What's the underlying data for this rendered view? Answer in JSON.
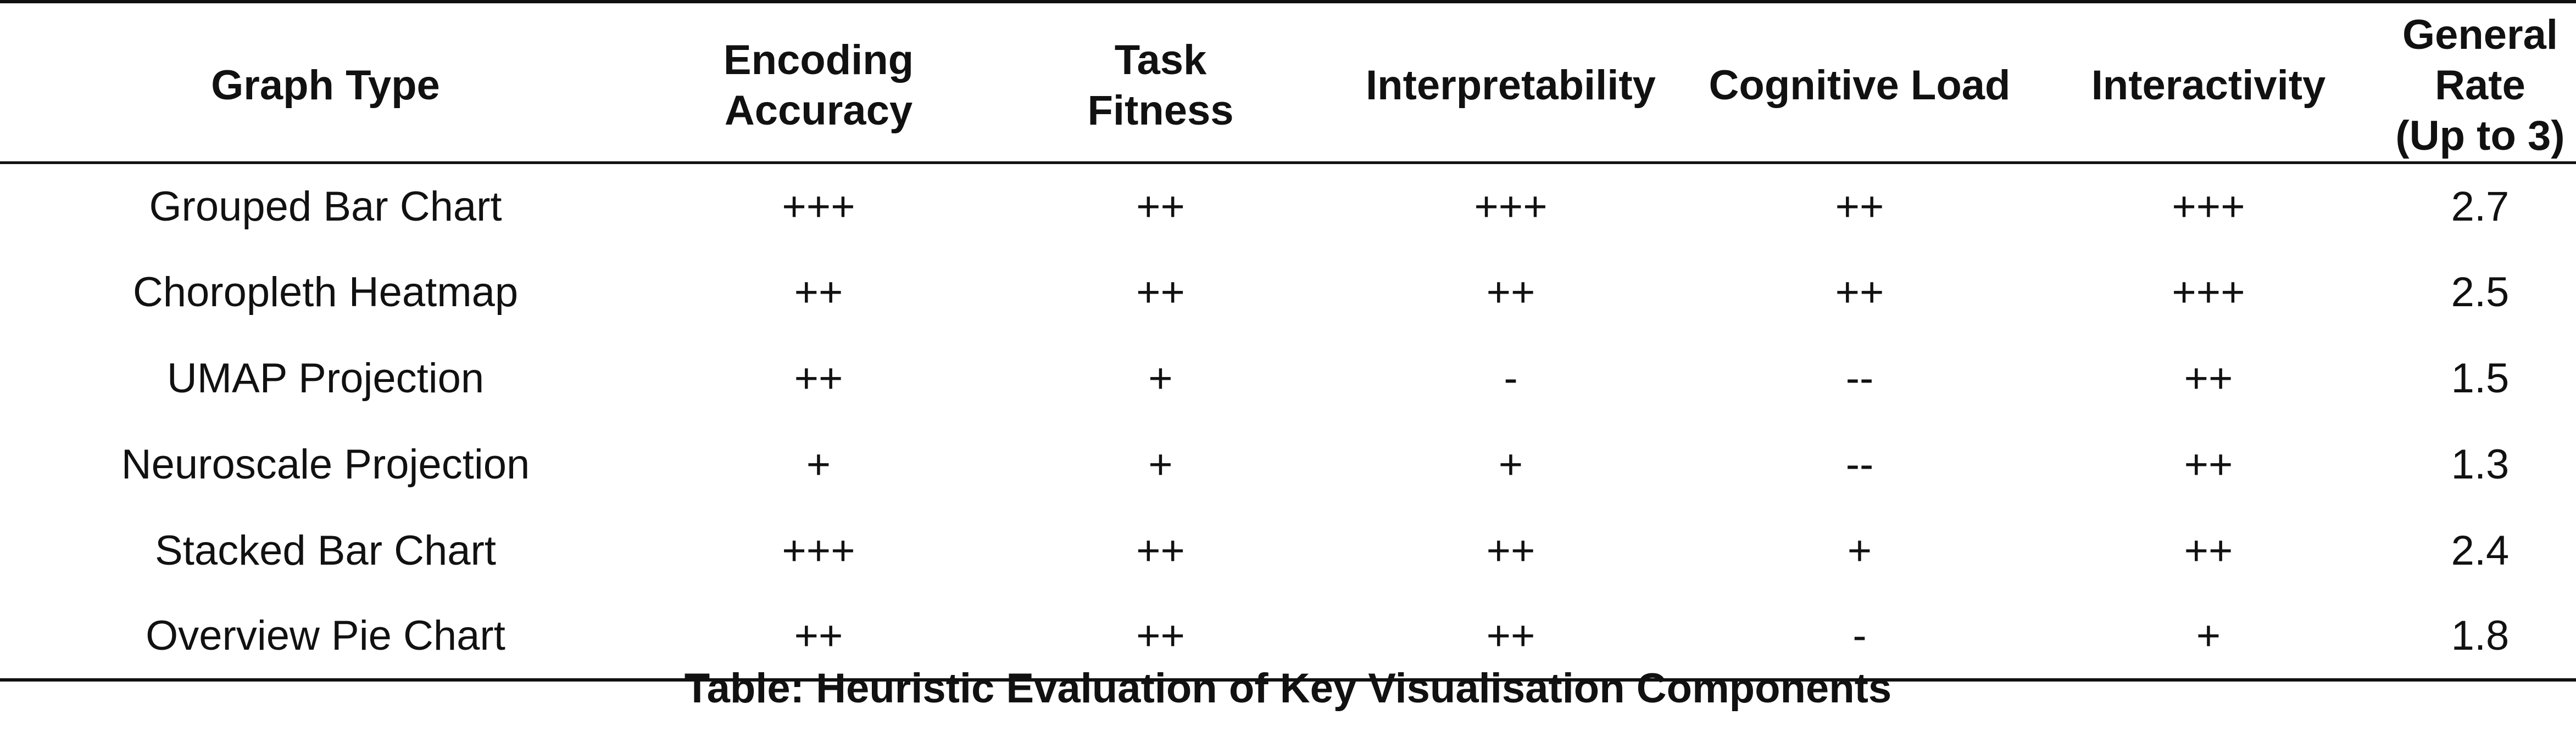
{
  "table": {
    "headers": [
      "Graph Type",
      "Encoding\nAccuracy",
      "Task\nFitness",
      "Interpretability",
      "Cognitive Load",
      "Interactivity",
      "General Rate\n(Up to 3)"
    ],
    "rows": [
      [
        "Grouped Bar Chart",
        "+++",
        "++",
        "+++",
        "++",
        "+++",
        "2.7"
      ],
      [
        "Choropleth Heatmap",
        "++",
        "++",
        "++",
        "++",
        "+++",
        "2.5"
      ],
      [
        "UMAP Projection",
        "++",
        "+",
        "-",
        "--",
        "++",
        "1.5"
      ],
      [
        "Neuroscale Projection",
        "+",
        "+",
        "+",
        "--",
        "++",
        "1.3"
      ],
      [
        "Stacked Bar Chart",
        "+++",
        "++",
        "++",
        "+",
        "++",
        "2.4"
      ],
      [
        "Overview Pie Chart",
        "++",
        "++",
        "++",
        "-",
        "+",
        "1.8"
      ]
    ]
  },
  "caption": "Table: Heuristic Evaluation of Key Visualisation Components"
}
